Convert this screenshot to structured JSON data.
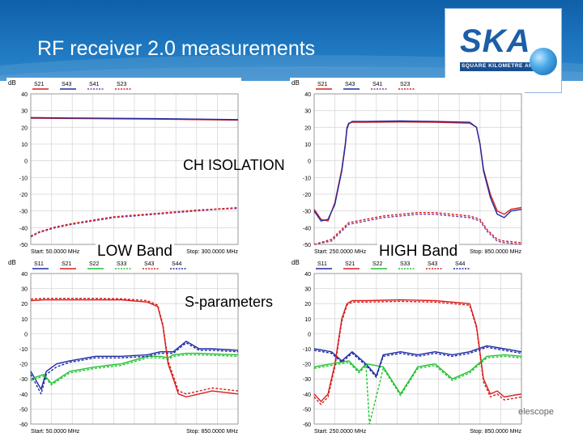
{
  "slide": {
    "title": "RF receiver 2.0 measurements",
    "footer": "elescope",
    "logo": {
      "main": "SKA",
      "sub": "SQUARE KILOMETRE ARRAY"
    }
  },
  "overlays": {
    "ch_isolation": "CH ISOLATION",
    "low_band": "LOW Band",
    "high_band": "HIGH Band",
    "s_parameters": "S-parameters"
  },
  "colors": {
    "red": "#d81e1e",
    "blue": "#1f2aa6",
    "green": "#22c332",
    "purple": "#7a3aa0"
  },
  "chart_data": [
    {
      "type": "line",
      "ylabel": "dB",
      "ylim": [
        -50,
        40
      ],
      "yticks": [
        40,
        30,
        20,
        10,
        0,
        -10,
        -20,
        -30,
        -40,
        -50
      ],
      "xlim": [
        50,
        300
      ],
      "start_label": "Start: 50.0000 MHz",
      "stop_label": "Stop: 300.0000 MHz",
      "legend": [
        "S21",
        "S43",
        "S41",
        "S23"
      ],
      "series": [
        {
          "name": "S21",
          "color": "#d81e1e",
          "dash": false,
          "x": [
            50,
            100,
            150,
            200,
            250,
            300
          ],
          "y": [
            25.5,
            25.3,
            25.1,
            24.9,
            24.6,
            24.3
          ]
        },
        {
          "name": "S43",
          "color": "#1f2aa6",
          "dash": false,
          "x": [
            50,
            100,
            150,
            200,
            250,
            300
          ],
          "y": [
            25.8,
            25.6,
            25.4,
            25.2,
            24.9,
            24.6
          ]
        },
        {
          "name": "S41",
          "color": "#7a3aa0",
          "dash": true,
          "x": [
            50,
            60,
            80,
            100,
            125,
            150,
            175,
            200,
            225,
            250,
            275,
            300
          ],
          "y": [
            -45.5,
            -43,
            -40,
            -38,
            -36,
            -34,
            -33,
            -32,
            -31,
            -30,
            -29,
            -28.5
          ]
        },
        {
          "name": "S23",
          "color": "#d81e1e",
          "dash": true,
          "x": [
            50,
            60,
            80,
            100,
            125,
            150,
            175,
            200,
            225,
            250,
            275,
            300
          ],
          "y": [
            -45,
            -42.5,
            -39.5,
            -37.5,
            -35.5,
            -33.5,
            -32.5,
            -31.5,
            -30.5,
            -29.5,
            -28.8,
            -28
          ]
        }
      ]
    },
    {
      "type": "line",
      "ylabel": "dB",
      "ylim": [
        -50,
        40
      ],
      "yticks": [
        40,
        30,
        20,
        10,
        0,
        -10,
        -20,
        -30,
        -40,
        -50
      ],
      "xlim": [
        250,
        850
      ],
      "start_label": "Start: 250.0000 MHz",
      "stop_label": "Stop: 850.0000 MHz",
      "legend": [
        "S21",
        "S43",
        "S41",
        "S23"
      ],
      "series": [
        {
          "name": "S21",
          "color": "#d81e1e",
          "dash": false,
          "x": [
            250,
            270,
            290,
            310,
            330,
            340,
            345,
            350,
            360,
            400,
            500,
            600,
            700,
            720,
            730,
            740,
            760,
            780,
            800,
            820,
            850
          ],
          "y": [
            -29,
            -35,
            -36,
            -25,
            -5,
            10,
            20,
            22.5,
            23,
            23,
            23.2,
            23,
            22.5,
            20,
            10,
            -5,
            -20,
            -30,
            -32,
            -29,
            -28
          ]
        },
        {
          "name": "S43",
          "color": "#1f2aa6",
          "dash": false,
          "x": [
            250,
            270,
            290,
            310,
            330,
            340,
            345,
            350,
            360,
            400,
            500,
            600,
            700,
            720,
            730,
            740,
            760,
            780,
            800,
            820,
            850
          ],
          "y": [
            -30,
            -36,
            -35,
            -26,
            -6,
            9,
            19,
            22,
            23.5,
            23.5,
            23.8,
            23.5,
            23,
            20,
            10,
            -6,
            -22,
            -32,
            -34,
            -30,
            -29
          ]
        },
        {
          "name": "S41",
          "color": "#7a3aa0",
          "dash": true,
          "x": [
            250,
            300,
            350,
            400,
            450,
            500,
            550,
            600,
            650,
            700,
            730,
            750,
            780,
            800,
            850
          ],
          "y": [
            -50,
            -48,
            -38,
            -36,
            -34,
            -33,
            -32,
            -32,
            -33,
            -34,
            -36,
            -42,
            -48,
            -49,
            -50
          ]
        },
        {
          "name": "S23",
          "color": "#d81e1e",
          "dash": true,
          "x": [
            250,
            300,
            350,
            400,
            450,
            500,
            550,
            600,
            650,
            700,
            730,
            750,
            780,
            800,
            850
          ],
          "y": [
            -50,
            -47,
            -37,
            -35,
            -33,
            -32,
            -31,
            -31,
            -32,
            -33,
            -35,
            -41,
            -47,
            -48,
            -49
          ]
        }
      ]
    },
    {
      "type": "line",
      "ylabel": "dB",
      "ylim": [
        -60,
        40
      ],
      "yticks": [
        40,
        30,
        20,
        10,
        0,
        -10,
        -20,
        -30,
        -40,
        -50,
        -60
      ],
      "xlim": [
        50,
        850
      ],
      "start_label": "Start: 50.0000 MHz",
      "stop_label": "Stop: 850.0000 MHz",
      "legend": [
        "S11",
        "S21",
        "S22",
        "S33",
        "S43",
        "S44"
      ],
      "series": [
        {
          "name": "S11",
          "color": "#1f2aa6",
          "dash": false,
          "x": [
            50,
            90,
            110,
            150,
            200,
            300,
            400,
            500,
            550,
            600,
            650,
            700,
            750,
            850
          ],
          "y": [
            -25,
            -37,
            -25,
            -20,
            -18,
            -15,
            -15,
            -14,
            -12,
            -12,
            -5,
            -10,
            -10,
            -11
          ]
        },
        {
          "name": "S21",
          "color": "#d81e1e",
          "dash": false,
          "x": [
            50,
            100,
            200,
            300,
            400,
            500,
            540,
            560,
            580,
            600,
            620,
            650,
            700,
            750,
            850
          ],
          "y": [
            22,
            22.5,
            22.5,
            22.5,
            22.5,
            21,
            18,
            5,
            -20,
            -30,
            -40,
            -42,
            -40,
            -38,
            -40
          ]
        },
        {
          "name": "S22",
          "color": "#22c332",
          "dash": false,
          "x": [
            50,
            100,
            130,
            200,
            300,
            400,
            500,
            550,
            580,
            600,
            650,
            700,
            850
          ],
          "y": [
            -30,
            -27,
            -33,
            -25,
            -22,
            -20,
            -15,
            -15,
            -16,
            -14,
            -13,
            -13,
            -14
          ]
        },
        {
          "name": "S33",
          "color": "#22c332",
          "dash": true,
          "x": [
            50,
            100,
            130,
            200,
            300,
            400,
            500,
            550,
            580,
            600,
            650,
            700,
            850
          ],
          "y": [
            -31,
            -28,
            -34,
            -26,
            -23,
            -21,
            -16,
            -16,
            -17,
            -15,
            -14,
            -14,
            -15
          ]
        },
        {
          "name": "S43",
          "color": "#d81e1e",
          "dash": true,
          "x": [
            50,
            100,
            200,
            300,
            400,
            500,
            540,
            560,
            580,
            600,
            620,
            650,
            700,
            750,
            850
          ],
          "y": [
            23,
            23.5,
            23.5,
            23.5,
            23.2,
            22,
            19,
            6,
            -18,
            -28,
            -38,
            -40,
            -38,
            -36,
            -38
          ]
        },
        {
          "name": "S44",
          "color": "#1f2aa6",
          "dash": true,
          "x": [
            50,
            90,
            110,
            150,
            200,
            300,
            400,
            500,
            550,
            600,
            650,
            700,
            750,
            850
          ],
          "y": [
            -27,
            -40,
            -27,
            -22,
            -19,
            -16,
            -16,
            -15,
            -13,
            -13,
            -6,
            -11,
            -11,
            -12
          ]
        }
      ]
    },
    {
      "type": "line",
      "ylabel": "dB",
      "ylim": [
        -60,
        40
      ],
      "yticks": [
        40,
        30,
        20,
        10,
        0,
        -10,
        -20,
        -30,
        -40,
        -50,
        -60
      ],
      "xlim": [
        250,
        850
      ],
      "start_label": "Start: 250.0000 MHz",
      "stop_label": "Stop: 850.0000 MHz",
      "legend": [
        "S11",
        "S21",
        "S22",
        "S33",
        "S43",
        "S44"
      ],
      "series": [
        {
          "name": "S11",
          "color": "#1f2aa6",
          "dash": false,
          "x": [
            250,
            300,
            330,
            360,
            400,
            430,
            450,
            500,
            550,
            600,
            650,
            700,
            750,
            800,
            850
          ],
          "y": [
            -10,
            -12,
            -18,
            -12,
            -20,
            -28,
            -14,
            -12,
            -14,
            -12,
            -14,
            -12,
            -8,
            -10,
            -12
          ]
        },
        {
          "name": "S21",
          "color": "#d81e1e",
          "dash": false,
          "x": [
            250,
            270,
            290,
            310,
            330,
            345,
            360,
            400,
            500,
            600,
            700,
            720,
            740,
            760,
            780,
            800,
            850
          ],
          "y": [
            -40,
            -45,
            -40,
            -20,
            10,
            20,
            22,
            22,
            22.5,
            22,
            20,
            5,
            -30,
            -40,
            -38,
            -42,
            -40
          ]
        },
        {
          "name": "S22",
          "color": "#22c332",
          "dash": false,
          "x": [
            250,
            300,
            350,
            380,
            400,
            450,
            500,
            550,
            600,
            650,
            700,
            750,
            800,
            850
          ],
          "y": [
            -22,
            -20,
            -18,
            -25,
            -20,
            -22,
            -40,
            -22,
            -20,
            -30,
            -25,
            -15,
            -14,
            -15
          ]
        },
        {
          "name": "S33",
          "color": "#22c332",
          "dash": true,
          "x": [
            250,
            300,
            350,
            380,
            400,
            410,
            450,
            500,
            550,
            600,
            650,
            700,
            750,
            800,
            850
          ],
          "y": [
            -23,
            -21,
            -19,
            -26,
            -21,
            -60,
            -23,
            -41,
            -23,
            -21,
            -31,
            -26,
            -16,
            -15,
            -16
          ]
        },
        {
          "name": "S43",
          "color": "#d81e1e",
          "dash": true,
          "x": [
            250,
            270,
            290,
            310,
            330,
            345,
            360,
            400,
            500,
            600,
            700,
            720,
            740,
            760,
            780,
            800,
            850
          ],
          "y": [
            -42,
            -47,
            -42,
            -22,
            8,
            19,
            21,
            21,
            21.5,
            21,
            19,
            4,
            -32,
            -42,
            -40,
            -44,
            -42
          ]
        },
        {
          "name": "S44",
          "color": "#1f2aa6",
          "dash": true,
          "x": [
            250,
            300,
            330,
            360,
            400,
            430,
            450,
            500,
            550,
            600,
            650,
            700,
            750,
            800,
            850
          ],
          "y": [
            -11,
            -13,
            -19,
            -13,
            -21,
            -29,
            -15,
            -13,
            -15,
            -13,
            -15,
            -13,
            -9,
            -11,
            -13
          ]
        }
      ]
    }
  ]
}
